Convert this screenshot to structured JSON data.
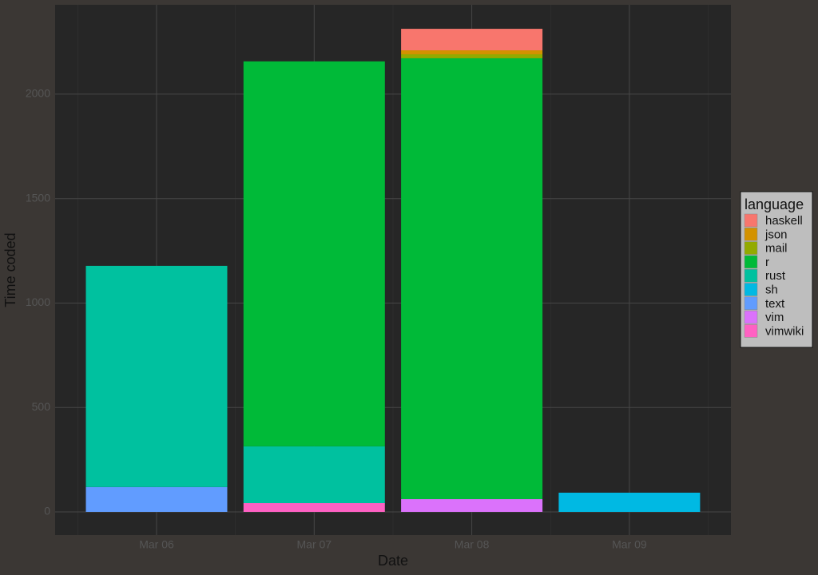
{
  "chart_data": {
    "type": "stacked-bar",
    "x_label": "Date",
    "y_label": "Time coded",
    "categories": [
      "Mar 06",
      "Mar 07",
      "Mar 08",
      "Mar 09"
    ],
    "legend_title": "language",
    "legend_position": "right",
    "grid": true,
    "ylim": [
      -111,
      2428
    ],
    "yticks": [
      0,
      500,
      1000,
      1500,
      2000
    ],
    "series": [
      {
        "name": "haskell",
        "color": "#F8766D",
        "values": [
          null,
          null,
          103,
          null
        ]
      },
      {
        "name": "json",
        "color": "#D39200",
        "values": [
          null,
          null,
          19,
          null
        ]
      },
      {
        "name": "mail",
        "color": "#93AA00",
        "values": [
          null,
          null,
          19,
          null
        ]
      },
      {
        "name": "r",
        "color": "#00BA38",
        "values": [
          null,
          1843,
          2111,
          null
        ]
      },
      {
        "name": "rust",
        "color": "#00C19F",
        "values": [
          1059,
          272,
          null,
          null
        ]
      },
      {
        "name": "sh",
        "color": "#00B9E3",
        "values": [
          null,
          null,
          null,
          92
        ]
      },
      {
        "name": "text",
        "color": "#619CFF",
        "values": [
          119,
          null,
          null,
          null
        ]
      },
      {
        "name": "vim",
        "color": "#DB72FB",
        "values": [
          null,
          null,
          61,
          null
        ]
      },
      {
        "name": "vimwiki",
        "color": "#FF61C3",
        "values": [
          null,
          42,
          null,
          null
        ]
      }
    ]
  }
}
